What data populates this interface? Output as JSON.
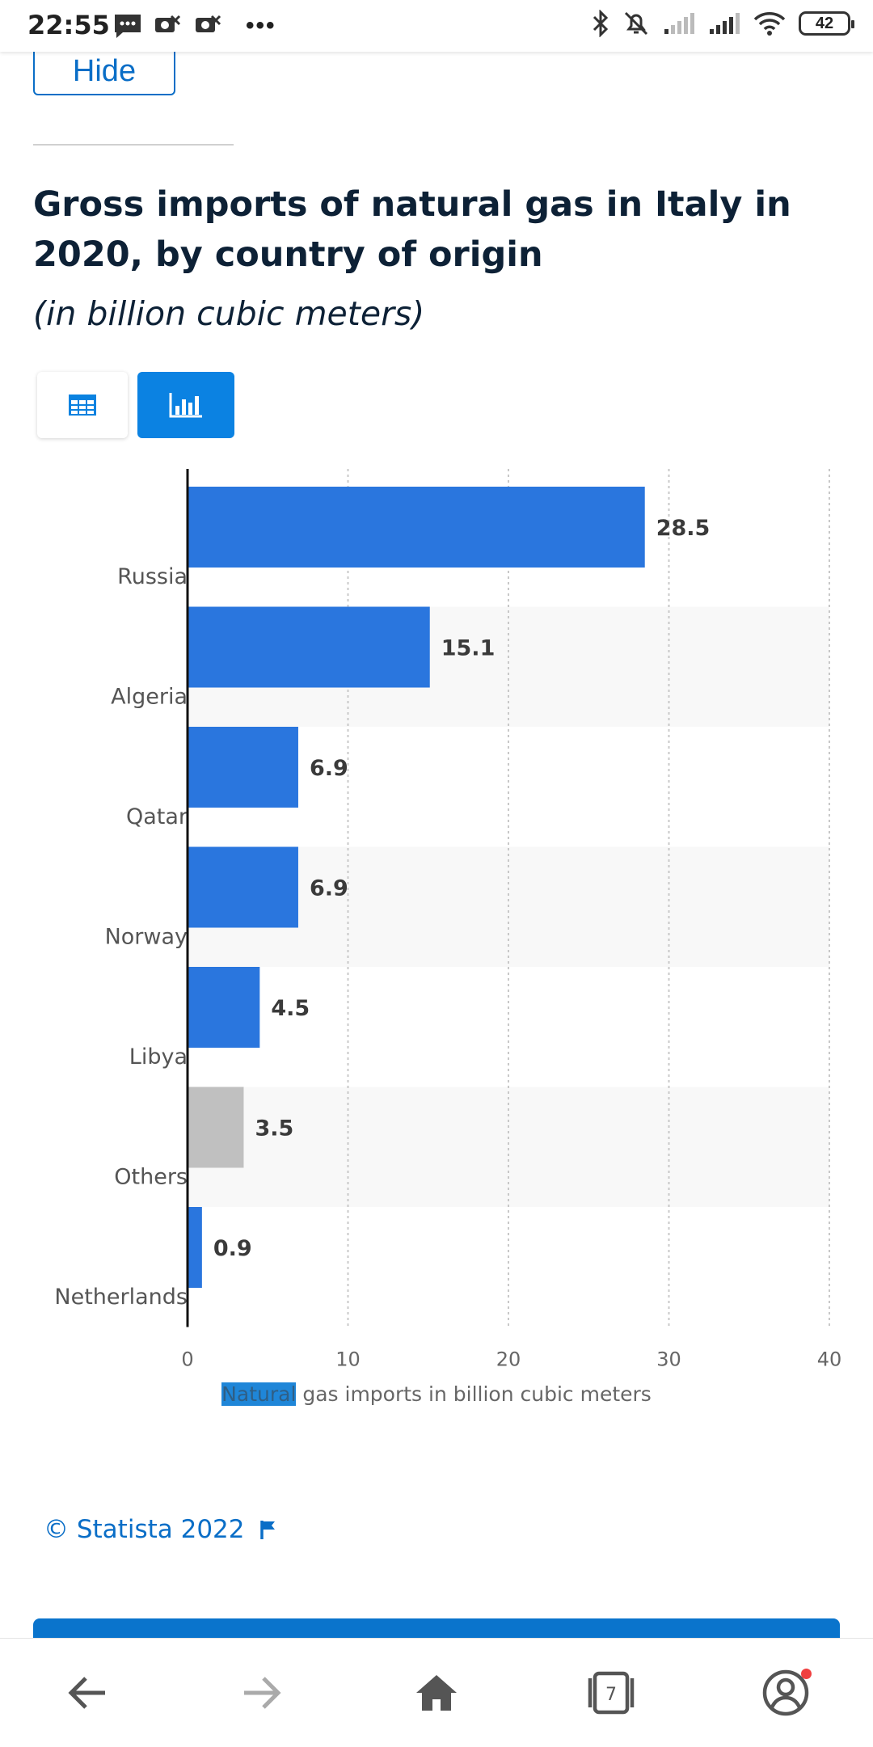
{
  "status_bar": {
    "time": "22:55",
    "battery": "42"
  },
  "hide_button": {
    "label": "Hide"
  },
  "chart_header": {
    "title": "Gross imports of natural gas in Italy in 2020, by country of origin",
    "subtitle": "(in billion cubic meters)"
  },
  "view_toggle": {
    "table_icon": "table-icon",
    "chart_icon": "bar-chart-icon",
    "active": "chart"
  },
  "chart_data": {
    "type": "bar",
    "orientation": "horizontal",
    "categories": [
      "Russia",
      "Algeria",
      "Qatar",
      "Norway",
      "Libya",
      "Others",
      "Netherlands"
    ],
    "values": [
      28.5,
      15.1,
      6.9,
      6.9,
      4.5,
      3.5,
      0.9
    ],
    "value_labels": [
      "28.5",
      "15.1",
      "6.9",
      "6.9",
      "4.5",
      "3.5",
      "0.9"
    ],
    "bar_colors": [
      "#2a76de",
      "#2a76de",
      "#2a76de",
      "#2a76de",
      "#2a76de",
      "#c0c0c0",
      "#2a76de"
    ],
    "xlim": [
      0,
      40
    ],
    "xticks": [
      "0",
      "10",
      "20",
      "30",
      "40"
    ],
    "xlabel": "Natural gas imports in billion cubic meters",
    "xlabel_highlight": "Natural",
    "xlabel_rest": " gas imports in billion cubic meters",
    "grid": "vertical dotted"
  },
  "source": {
    "copyright": "© Statista 2022",
    "flag_icon": "flag-icon"
  },
  "nav": {
    "tabs_count": "7",
    "icons": [
      "back-arrow-icon",
      "forward-arrow-icon",
      "home-icon",
      "tabs-icon",
      "account-icon"
    ]
  }
}
